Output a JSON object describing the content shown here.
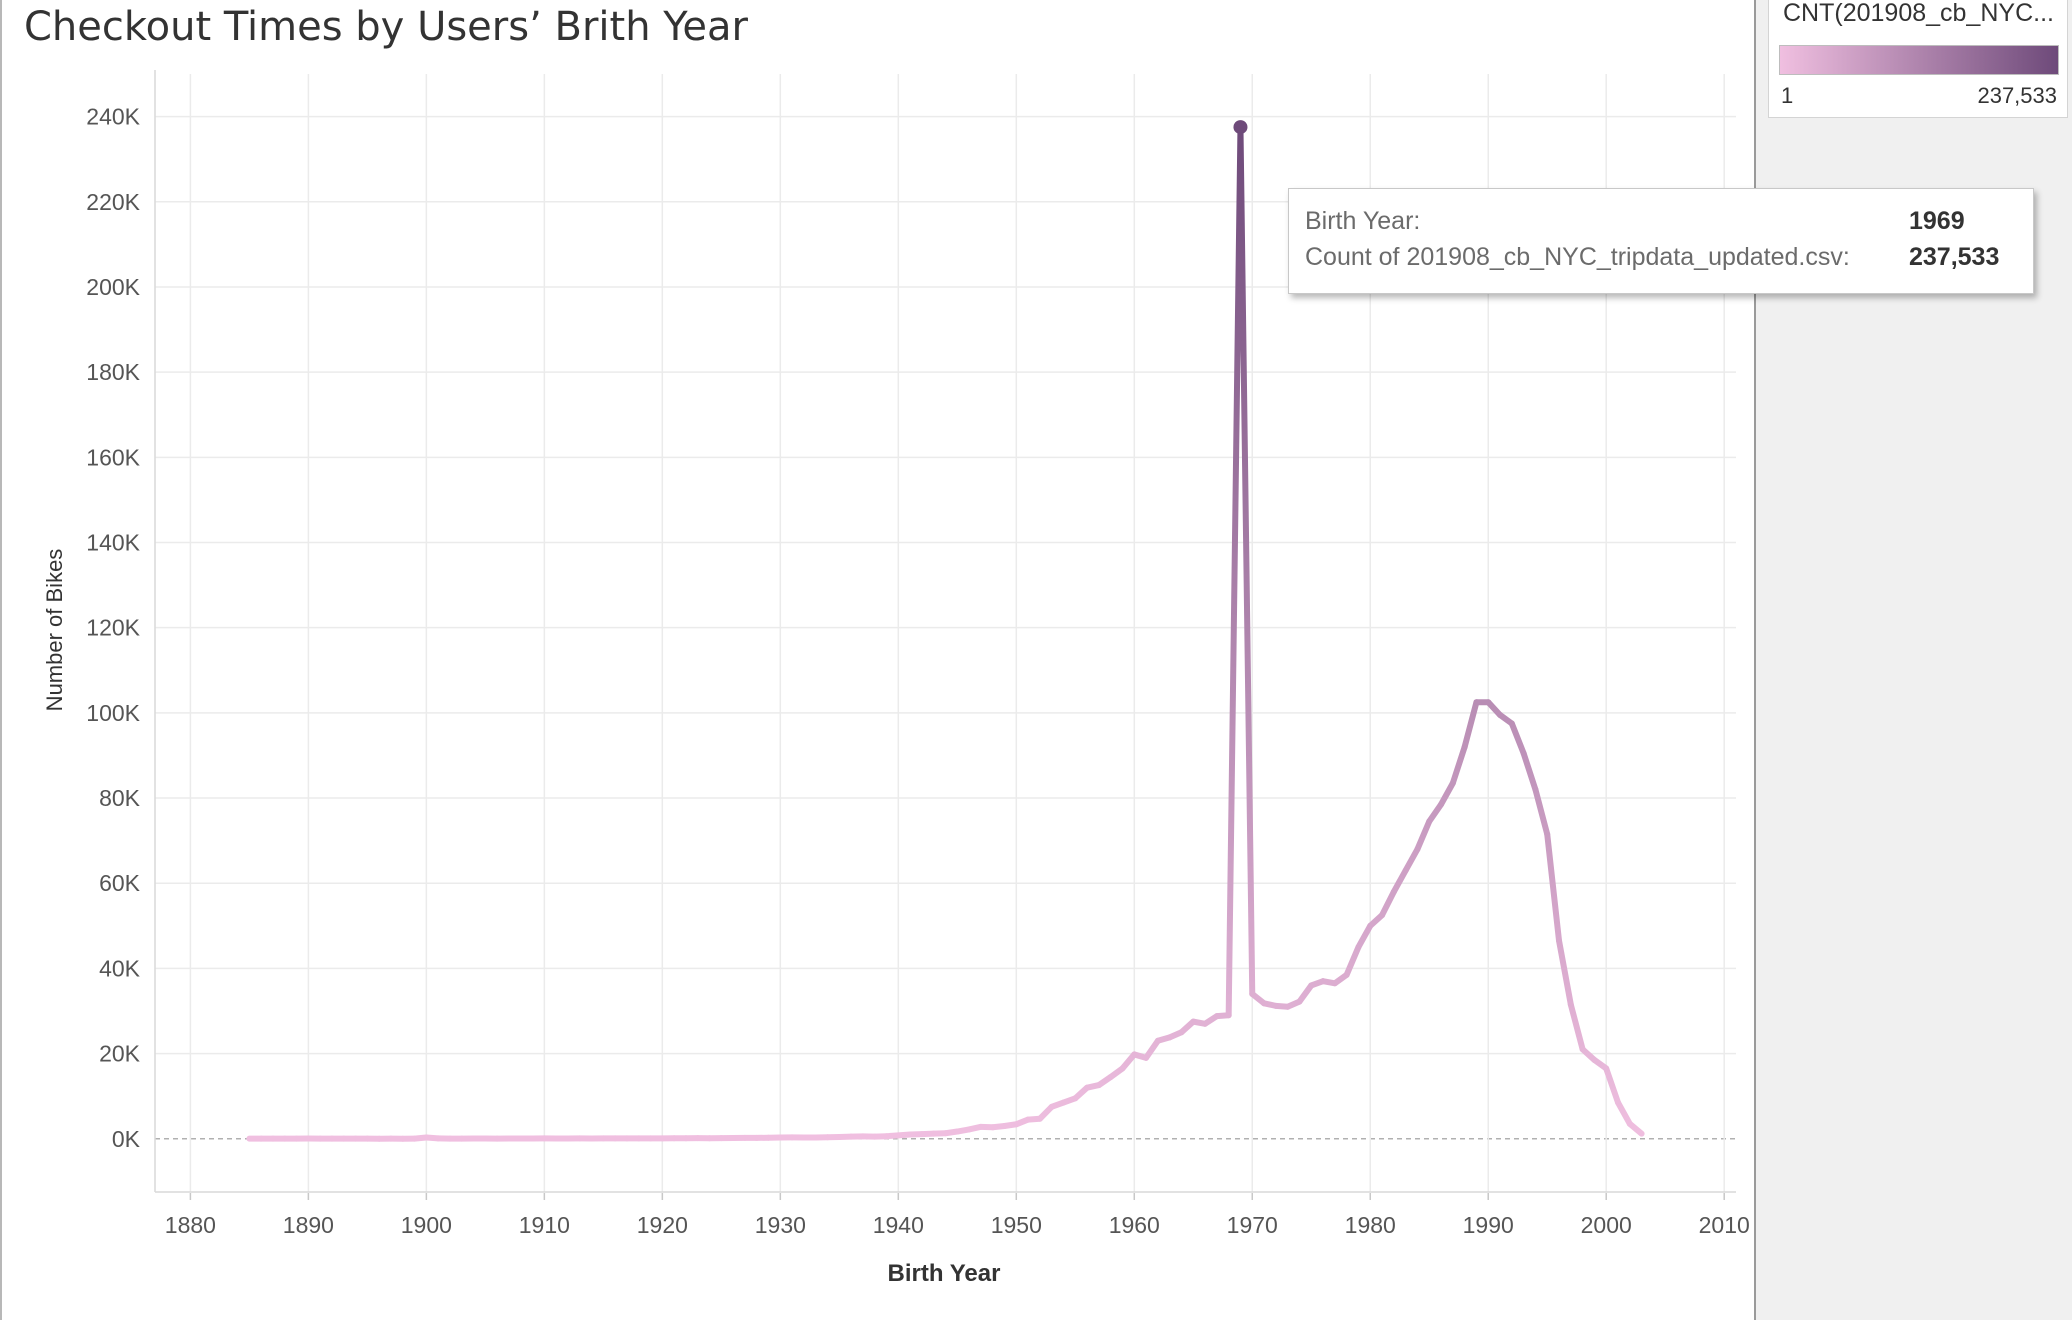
{
  "chart_data": {
    "type": "line",
    "title": "Checkout Times by Users’ Brith Year",
    "xlabel": "Birth Year",
    "ylabel": "Number of Bikes",
    "xlim": [
      1877,
      2011
    ],
    "ylim": [
      -12500,
      250000
    ],
    "x_ticks": [
      1880,
      1890,
      1900,
      1910,
      1920,
      1930,
      1940,
      1950,
      1960,
      1970,
      1980,
      1990,
      2000,
      2010
    ],
    "x_tick_labels": [
      "1880",
      "1890",
      "1900",
      "1910",
      "1920",
      "1930",
      "1940",
      "1950",
      "1960",
      "1970",
      "1980",
      "1990",
      "2000",
      "2010"
    ],
    "y_ticks": [
      0,
      20000,
      40000,
      60000,
      80000,
      100000,
      120000,
      140000,
      160000,
      180000,
      200000,
      220000,
      240000
    ],
    "y_tick_labels": [
      "0K",
      "20K",
      "40K",
      "60K",
      "80K",
      "100K",
      "120K",
      "140K",
      "160K",
      "180K",
      "200K",
      "220K",
      "240K"
    ],
    "grid": true,
    "color_min": "#f0bfe0",
    "color_max": "#6e4a7a",
    "series": [
      {
        "x": [
          1885,
          1886,
          1887,
          1888,
          1889,
          1890,
          1891,
          1892,
          1893,
          1894,
          1895,
          1896,
          1897,
          1898,
          1899,
          1900,
          1901,
          1902,
          1903,
          1904,
          1905,
          1906,
          1907,
          1908,
          1909,
          1910,
          1911,
          1912,
          1913,
          1914,
          1915,
          1916,
          1917,
          1918,
          1919,
          1920,
          1921,
          1922,
          1923,
          1924,
          1925,
          1926,
          1927,
          1928,
          1929,
          1930,
          1931,
          1932,
          1933,
          1934,
          1935,
          1936,
          1937,
          1938,
          1939,
          1940,
          1941,
          1942,
          1943,
          1944,
          1945,
          1946,
          1947,
          1948,
          1949,
          1950,
          1951,
          1952,
          1953,
          1954,
          1955,
          1956,
          1957,
          1958,
          1959,
          1960,
          1961,
          1962,
          1963,
          1964,
          1965,
          1966,
          1967,
          1968,
          1969,
          1970,
          1971,
          1972,
          1973,
          1974,
          1975,
          1976,
          1977,
          1978,
          1979,
          1980,
          1981,
          1982,
          1983,
          1984,
          1985,
          1986,
          1987,
          1988,
          1989,
          1990,
          1991,
          1992,
          1993,
          1994,
          1995,
          1996,
          1997,
          1998,
          1999,
          2000,
          2001,
          2002,
          2003
        ],
        "y": [
          30,
          20,
          40,
          25,
          30,
          60,
          30,
          20,
          25,
          20,
          20,
          15,
          20,
          15,
          30,
          300,
          80,
          40,
          40,
          50,
          60,
          40,
          60,
          50,
          60,
          80,
          70,
          60,
          80,
          60,
          80,
          90,
          100,
          90,
          100,
          100,
          120,
          120,
          140,
          120,
          150,
          180,
          220,
          200,
          250,
          300,
          320,
          300,
          300,
          350,
          400,
          500,
          550,
          500,
          600,
          800,
          1000,
          1100,
          1200,
          1300,
          1700,
          2200,
          2800,
          2700,
          3000,
          3400,
          4500,
          4700,
          7500,
          8500,
          9500,
          12000,
          12600,
          14500,
          16500,
          19800,
          19000,
          23000,
          23800,
          25000,
          27500,
          27000,
          28800,
          29000,
          237533,
          34000,
          31800,
          31200,
          31000,
          32200,
          36000,
          37000,
          36500,
          38500,
          45000,
          50000,
          52500,
          58000,
          63000,
          68000,
          74500,
          78500,
          83500,
          92000,
          102500,
          102500,
          99500,
          97500,
          90500,
          82000,
          71500,
          46500,
          31500,
          21000,
          18500,
          16500,
          8500,
          3500,
          1200
        ]
      }
    ],
    "legend": {
      "title": "CNT(201908_cb_NYC...",
      "min_label": "1",
      "max_label": "237,533",
      "placement": "top-right"
    },
    "tooltip": {
      "row1_label": "Birth Year:",
      "row1_value": "1969",
      "row2_label": "Count of 201908_cb_NYC_tripdata_updated.csv:",
      "row2_value": "237,533"
    }
  }
}
